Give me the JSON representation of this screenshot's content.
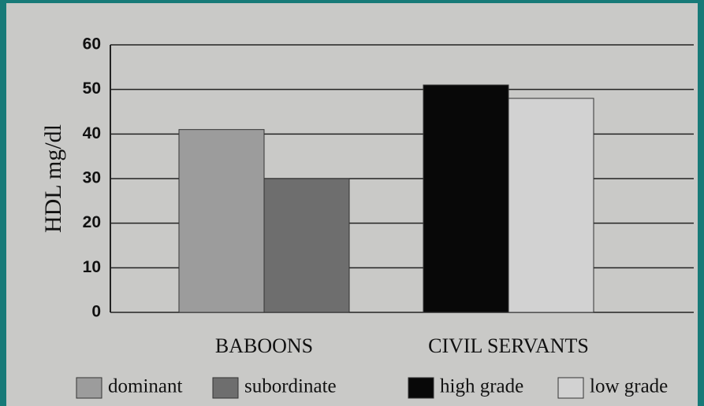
{
  "chart_data": {
    "type": "bar",
    "ylabel": "HDL mg/dl",
    "categories": [
      "BABOONS",
      "CIVIL SERVANTS"
    ],
    "series": [
      {
        "name": "dominant",
        "color": "#9c9c9c",
        "values": [
          41,
          null
        ]
      },
      {
        "name": "subordinate",
        "color": "#6e6e6e",
        "values": [
          30,
          null
        ]
      },
      {
        "name": "high grade",
        "color": "#080808",
        "values": [
          null,
          51
        ]
      },
      {
        "name": "low grade",
        "color": "#d2d2d2",
        "values": [
          null,
          48
        ]
      }
    ],
    "ylim": [
      0,
      60
    ],
    "yticks": [
      0,
      10,
      20,
      30,
      40,
      50,
      60
    ],
    "grid": true,
    "legend": "bottom"
  }
}
